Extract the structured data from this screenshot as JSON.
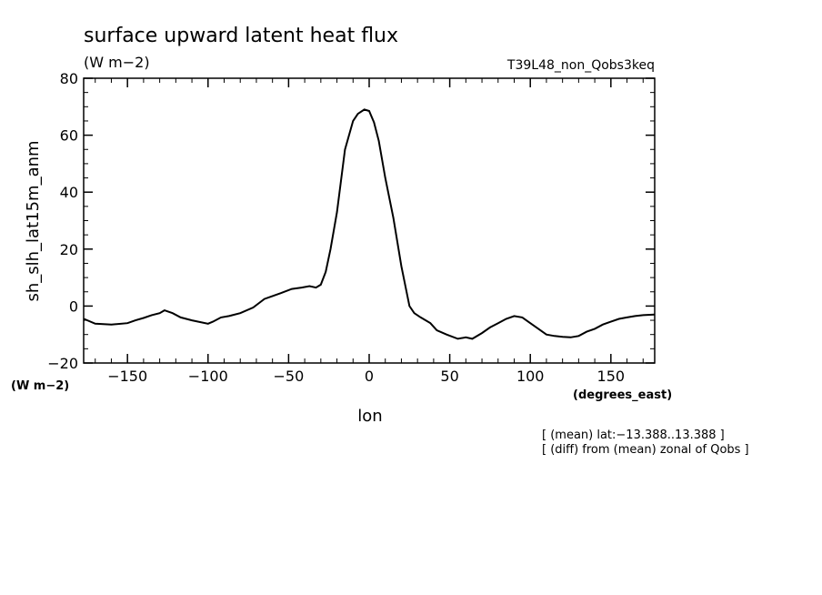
{
  "chart_data": {
    "type": "line",
    "title": "surface upward latent heat flux",
    "units": "(W m−2)",
    "run_label": "T39L48_non_Qobs3keq",
    "xlabel": "lon",
    "xunits": "(degrees_east)",
    "ylabel": "sh_slh_lat15m_anm",
    "yunits": "(W m−2)",
    "xlim": [
      -177.1875,
      177.1875
    ],
    "ylim": [
      -20,
      80
    ],
    "x_ticks": [
      -150,
      -100,
      -50,
      0,
      50,
      100,
      150
    ],
    "x_tick_labels": [
      "−150",
      "−100",
      "−50",
      "0",
      "50",
      "100",
      "150"
    ],
    "y_ticks": [
      -20,
      0,
      20,
      40,
      60,
      80
    ],
    "y_tick_labels": [
      "−20",
      "0",
      "20",
      "40",
      "60",
      "80"
    ],
    "notes": [
      "[ (mean) lat:−13.388..13.388 ]",
      "[ (diff) from (mean) zonal of Qobs ]"
    ],
    "series": [
      {
        "x": [
          -177,
          -170,
          -160,
          -150,
          -145,
          -140,
          -135,
          -130,
          -127,
          -122,
          -117,
          -110,
          -100,
          -97,
          -92,
          -87,
          -80,
          -72,
          -65,
          -60,
          -55,
          -48,
          -42,
          -37,
          -33,
          -30,
          -27,
          -24,
          -20,
          -15,
          -10,
          -7,
          -3,
          0,
          3,
          6,
          10,
          15,
          20,
          25,
          28,
          32,
          38,
          42,
          48,
          55,
          60,
          64,
          70,
          75,
          80,
          85,
          90,
          95,
          100,
          105,
          110,
          115,
          120,
          125,
          130,
          135,
          140,
          145,
          150,
          155,
          160,
          165,
          170,
          177
        ],
        "y": [
          -4.5,
          -6.2,
          -6.5,
          -6.0,
          -5.0,
          -4.2,
          -3.2,
          -2.5,
          -1.5,
          -2.5,
          -4.0,
          -5.0,
          -6.2,
          -5.5,
          -4.0,
          -3.5,
          -2.5,
          -0.5,
          2.5,
          3.5,
          4.5,
          6.0,
          6.5,
          7.0,
          6.5,
          7.5,
          12.0,
          20.0,
          33.0,
          55.0,
          65.0,
          67.5,
          69.0,
          68.5,
          64.5,
          58.0,
          45.0,
          31.0,
          14.0,
          0.0,
          -2.5,
          -4.0,
          -6.0,
          -8.5,
          -10.0,
          -11.5,
          -11.0,
          -11.5,
          -9.5,
          -7.5,
          -6.0,
          -4.5,
          -3.5,
          -4.0,
          -6.0,
          -8.0,
          -10.0,
          -10.5,
          -10.8,
          -11.0,
          -10.5,
          -9.0,
          -8.0,
          -6.5,
          -5.5,
          -4.5,
          -4.0,
          -3.5,
          -3.2,
          -3.0
        ]
      }
    ]
  }
}
